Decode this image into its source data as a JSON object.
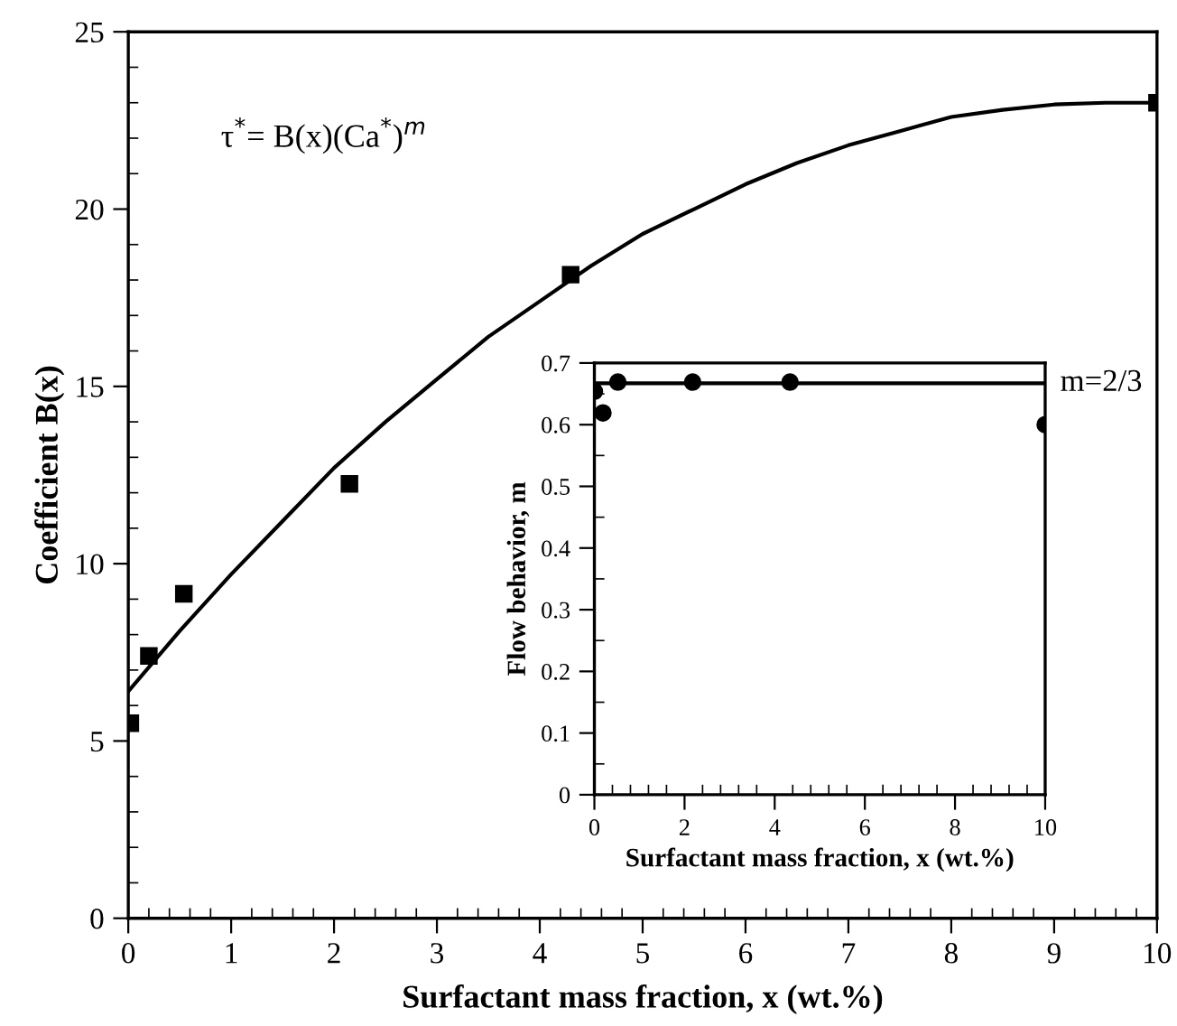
{
  "chart_data": [
    {
      "type": "scatter",
      "xlabel": "Surfactant mass fraction, x (wt.%)",
      "ylabel": "Coefficient B(x)",
      "xlim": [
        0,
        10
      ],
      "ylim": [
        0,
        25
      ],
      "xticks": [
        0,
        1,
        2,
        3,
        4,
        5,
        6,
        7,
        8,
        9,
        10
      ],
      "yticks": [
        0,
        5,
        10,
        15,
        20,
        25
      ],
      "grid": false,
      "annotations": [
        "τ$^{*}$= B(x)(Ca$^{*}$)$^{m}$"
      ],
      "series": [
        {
          "marker": "square",
          "color": "#000000",
          "x": [
            0.02,
            0.2,
            0.54,
            2.15,
            4.3,
            10
          ],
          "values": [
            5.5,
            7.4,
            9.15,
            12.25,
            18.15,
            23.0
          ]
        },
        {
          "type": "line",
          "marker": "none",
          "line_style": "solid",
          "color": "#000000",
          "x": [
            0,
            0.5,
            1,
            1.5,
            2,
            2.5,
            3,
            3.5,
            4,
            4.5,
            5,
            5.5,
            6,
            6.5,
            7,
            7.5,
            8,
            8.5,
            9,
            9.5,
            10
          ],
          "values": [
            6.4,
            8.1,
            9.7,
            11.2,
            12.7,
            14.0,
            15.2,
            16.4,
            17.4,
            18.4,
            19.3,
            20.0,
            20.7,
            21.3,
            21.8,
            22.2,
            22.6,
            22.8,
            22.95,
            23.0,
            23.0
          ]
        }
      ]
    },
    {
      "type": "scatter",
      "xlabel": "Surfactant mass fraction, x (wt.%)",
      "ylabel": "Flow behavior, m",
      "xlim": [
        0,
        10
      ],
      "ylim": [
        0,
        0.7
      ],
      "xticks": [
        0,
        2,
        4,
        6,
        8,
        10
      ],
      "yticks": [
        0,
        0.1,
        0.2,
        0.3,
        0.4,
        0.5,
        0.6,
        0.7
      ],
      "grid": false,
      "series": [
        {
          "type": "line",
          "name": "m=2/3",
          "marker": "none",
          "line_style": "solid",
          "color": "#000000",
          "x": [
            0,
            10
          ],
          "values": [
            0.667,
            0.667
          ]
        },
        {
          "marker": "circle",
          "color": "#000000",
          "x": [
            0,
            0.19,
            0.52,
            2.18,
            4.34,
            10
          ],
          "values": [
            0.654,
            0.619,
            0.669,
            0.669,
            0.669,
            0.6
          ]
        }
      ]
    }
  ]
}
